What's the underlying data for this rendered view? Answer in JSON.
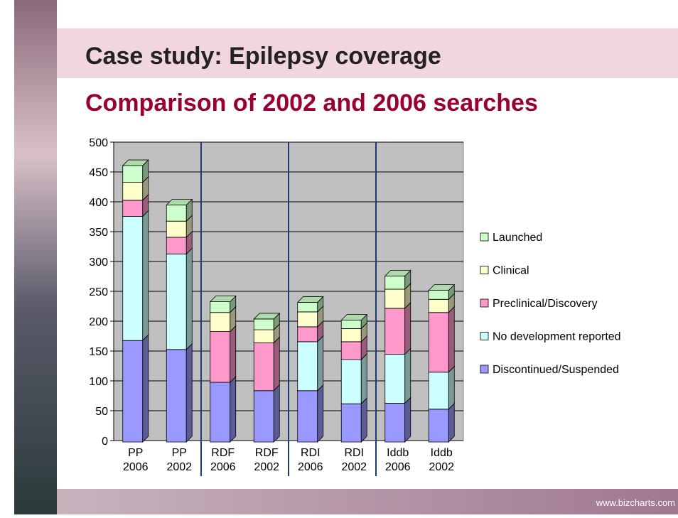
{
  "header": {
    "title": "Case study: Epilepsy coverage",
    "subtitle": "Comparison of 2002 and 2006 searches"
  },
  "footer": "www.bizcharts.com",
  "chart_data": {
    "type": "stacked_bar",
    "categories": [
      "PP 2006",
      "PP 2002",
      "RDF 2006",
      "RDF 2002",
      "RDI 2006",
      "RDI 2002",
      "Iddb 2006",
      "Iddb 2002"
    ],
    "series": [
      {
        "name": "Discontinued/Suspended",
        "color": "#9999ff",
        "values": [
          170,
          155,
          100,
          86,
          86,
          64,
          65,
          55
        ]
      },
      {
        "name": "No development reported",
        "color": "#ccffff",
        "values": [
          208,
          160,
          0,
          0,
          82,
          74,
          82,
          62
        ]
      },
      {
        "name": "Preclinical/Discovery",
        "color": "#ff99cc",
        "values": [
          27,
          28,
          85,
          80,
          25,
          30,
          77,
          100
        ]
      },
      {
        "name": "Clinical",
        "color": "#ffffcc",
        "values": [
          30,
          27,
          32,
          22,
          25,
          22,
          32,
          22
        ]
      },
      {
        "name": "Launched",
        "color": "#ccffcc",
        "values": [
          28,
          27,
          18,
          18,
          16,
          14,
          22,
          15
        ]
      }
    ],
    "ylim": [
      0,
      500
    ],
    "yticks": [
      0,
      50,
      100,
      150,
      200,
      250,
      300,
      350,
      400,
      450,
      500
    ],
    "grid": true,
    "legend": "right"
  }
}
